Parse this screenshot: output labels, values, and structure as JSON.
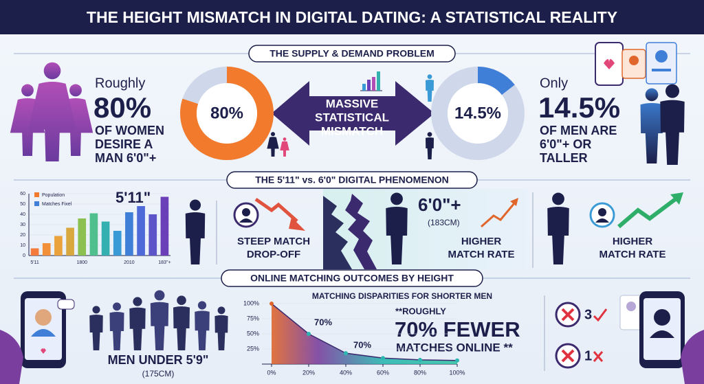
{
  "title": "THE HEIGHT MISMATCH IN DIGITAL DATING: A STATISTICAL REALITY",
  "sections": [
    {
      "heading": "THE SUPPLY & DEMAND PROBLEM",
      "left": {
        "lead": "Roughly",
        "stat": "80%",
        "lines": [
          "OF WOMEN",
          "DESIRE A",
          "MAN 6'0\"+"
        ]
      },
      "center": [
        "MASSIVE",
        "STATISTICAL",
        "MISMATCH"
      ],
      "right": {
        "lead": "Only",
        "stat": "14.5%",
        "lines": [
          "OF MEN ARE",
          "6'0\"+ OR",
          "TALLER"
        ]
      }
    },
    {
      "heading": "THE 5'11\" vs. 6'0\" DIGITAL PHENOMENON",
      "drop": [
        "STEEP MATCH",
        "DROP-OFF"
      ],
      "tall": {
        "height": "6'0\"+",
        "cm": "(183CM)",
        "lines": [
          "HIGHER",
          "MATCH RATE"
        ]
      },
      "right": [
        "HIGHER",
        "MATCH RATE"
      ]
    },
    {
      "heading": "ONLINE MATCHING OUTCOMES BY HEIGHT",
      "men": "MEN UNDER 5'9\"",
      "cm": "(175CM)",
      "callout": [
        "**ROUGHLY",
        "70% FEWER",
        "MATCHES ONLINE **"
      ],
      "icons": [
        "3",
        "1"
      ]
    }
  ],
  "chart_data": [
    {
      "type": "donut",
      "values": [
        80
      ],
      "value_labels": [
        "80%"
      ],
      "color": "#f27a2c",
      "ylim": [
        0,
        100
      ]
    },
    {
      "type": "donut",
      "values": [
        14.5
      ],
      "value_labels": [
        "14.5%"
      ],
      "color": "#3f7fd8",
      "ylim": [
        0,
        100
      ]
    },
    {
      "type": "bar",
      "annotation": "5'11\"",
      "legend": [
        {
          "name": "Population",
          "color": "#f27a2c"
        },
        {
          "name": "Matches Fixel",
          "color": "#3f7fd8"
        }
      ],
      "categories": [
        "5'11",
        null,
        null,
        null,
        "1800",
        null,
        null,
        null,
        "2010",
        null,
        null,
        "183''+"
      ],
      "values": [
        7,
        12,
        19,
        27,
        36,
        41,
        33,
        24,
        42,
        48,
        40,
        57
      ],
      "colors": [
        "#f47b3b",
        "#f2903a",
        "#e9a23c",
        "#d8a83e",
        "#8cc151",
        "#4fc08d",
        "#35b0b0",
        "#3a9ad6",
        "#3f7fd8",
        "#4d6ad8",
        "#5b55c9",
        "#6a3fb8"
      ],
      "ylim": [
        0,
        60
      ],
      "yticks": [
        0,
        10,
        20,
        30,
        40,
        50,
        60
      ]
    },
    {
      "type": "area",
      "title": "MATCHING DISPARITIES FOR SHORTER MEN",
      "x": [
        0,
        20,
        40,
        60,
        80,
        100
      ],
      "values": [
        100,
        50,
        18,
        10,
        7,
        6
      ],
      "color": "#2bb7b0",
      "line_color": "#3b2a6e",
      "xlim": [
        0,
        100
      ],
      "xticks": [
        {
          "value": 0,
          "label": "0%"
        },
        {
          "value": 20,
          "label": "20%"
        },
        {
          "value": 40,
          "label": "40%"
        },
        {
          "value": 60,
          "label": "60%"
        },
        {
          "value": 80,
          "label": "80%"
        },
        {
          "value": 100,
          "label": "100%"
        }
      ],
      "ylim": [
        0,
        100
      ],
      "yticks": [
        {
          "value": 25,
          "label": "25%"
        },
        {
          "value": 50,
          "label": "50%"
        },
        {
          "value": 75,
          "label": "75%"
        },
        {
          "value": 100,
          "label": "100%"
        }
      ],
      "annotations": [
        "70%",
        "70%"
      ]
    }
  ]
}
